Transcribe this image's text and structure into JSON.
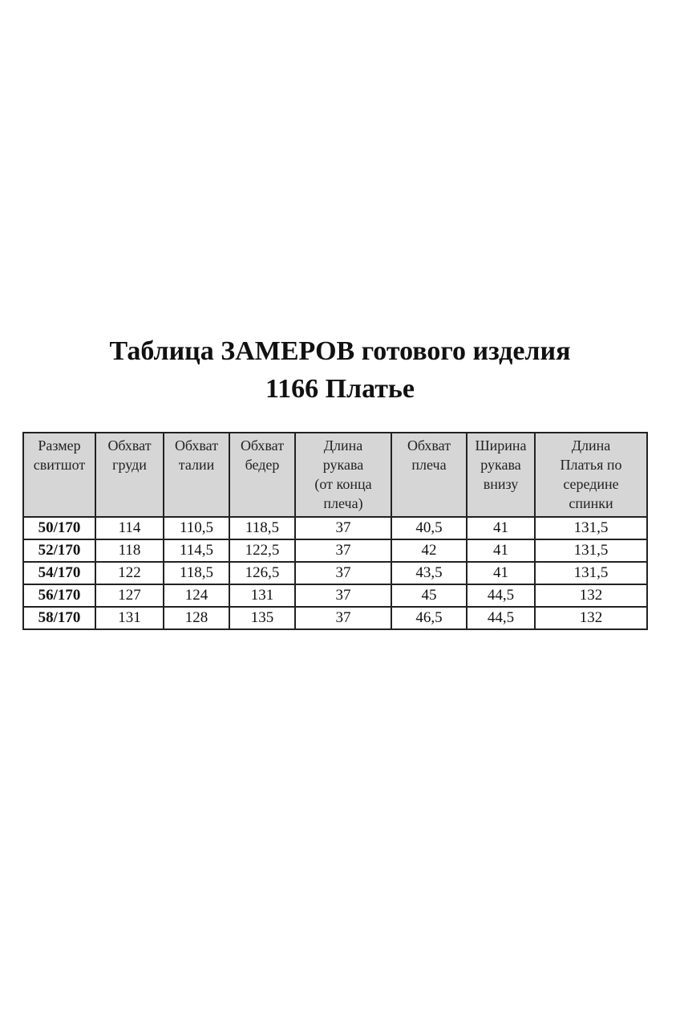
{
  "title": {
    "line1": "Таблица ЗАМЕРОВ готового изделия",
    "line2": "1166 Платье"
  },
  "table": {
    "headers": [
      "Размер\nсвитшот",
      "Обхват\nгруди",
      "Обхват\nталии",
      "Обхват\nбедер",
      "Длина\nрукава\n(от конца\nплеча)",
      "Обхват\nплеча",
      "Ширина\nрукава\nвнизу",
      "Длина\nПлатья по\nсередине\nспинки"
    ],
    "rows": [
      [
        "50/170",
        "114",
        "110,5",
        "118,5",
        "37",
        "40,5",
        "41",
        "131,5"
      ],
      [
        "52/170",
        "118",
        "114,5",
        "122,5",
        "37",
        "42",
        "41",
        "131,5"
      ],
      [
        "54/170",
        "122",
        "118,5",
        "126,5",
        "37",
        "43,5",
        "41",
        "131,5"
      ],
      [
        "56/170",
        "127",
        "124",
        "131",
        "37",
        "45",
        "44,5",
        "132"
      ],
      [
        "58/170",
        "131",
        "128",
        "135",
        "37",
        "46,5",
        "44,5",
        "132"
      ]
    ]
  }
}
